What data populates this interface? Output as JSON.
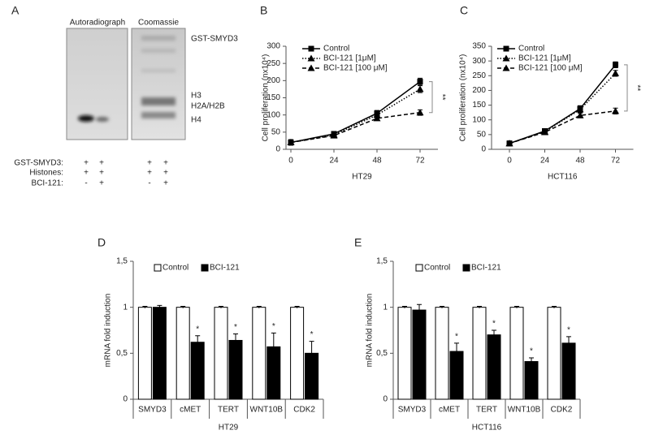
{
  "blot": {
    "panel": "A",
    "columns": [
      "Autoradiograph",
      "Coomassie"
    ],
    "bands": [
      "GST-SMYD3",
      "H3",
      "H2A/H2B",
      "H4"
    ],
    "rows": [
      {
        "label": "GST-SMYD3:",
        "lanes": [
          "+",
          "+",
          "+",
          "+"
        ]
      },
      {
        "label": "Histones:",
        "lanes": [
          "+",
          "+",
          "+",
          "+"
        ]
      },
      {
        "label": "BCI-121:",
        "lanes": [
          "-",
          "+",
          "-",
          "+"
        ]
      }
    ]
  },
  "chart_data": [
    {
      "type": "line",
      "panel": "B",
      "xlabel": "HT29",
      "ylabel": "Cell proliferation (nx10⁴)",
      "categories": [
        "0",
        "24",
        "48",
        "72"
      ],
      "ylim": [
        0,
        300
      ],
      "yticks": [
        0,
        50,
        100,
        150,
        200,
        250,
        300
      ],
      "annotation": "**",
      "series": [
        {
          "name": "Control",
          "color": "#000000",
          "marker": "square",
          "dash": "solid",
          "values": [
            20,
            45,
            105,
            197
          ],
          "errors": [
            8,
            6,
            8,
            10
          ]
        },
        {
          "name": "BCI-121 [1μM]",
          "color": "#000000",
          "marker": "triangle",
          "dash": "dotted",
          "values": [
            20,
            42,
            100,
            175
          ],
          "errors": [
            8,
            6,
            8,
            10
          ]
        },
        {
          "name": "BCI-121 [100 μM]",
          "color": "#000000",
          "marker": "triangle",
          "dash": "dashed",
          "values": [
            20,
            40,
            90,
            107
          ],
          "errors": [
            8,
            6,
            6,
            8
          ]
        }
      ]
    },
    {
      "type": "line",
      "panel": "C",
      "xlabel": "HCT116",
      "ylabel": "Cell proliferation (nx10⁴)",
      "categories": [
        "0",
        "24",
        "48",
        "72"
      ],
      "ylim": [
        0,
        350
      ],
      "yticks": [
        0,
        50,
        100,
        150,
        200,
        250,
        300,
        350
      ],
      "annotation": "**",
      "series": [
        {
          "name": "Control",
          "color": "#000000",
          "marker": "square",
          "dash": "solid",
          "values": [
            20,
            62,
            138,
            287
          ],
          "errors": [
            8,
            6,
            10,
            10
          ]
        },
        {
          "name": "BCI-121 [1μM]",
          "color": "#000000",
          "marker": "triangle",
          "dash": "dotted",
          "values": [
            20,
            60,
            135,
            258
          ],
          "errors": [
            8,
            6,
            10,
            10
          ]
        },
        {
          "name": "BCI-121 [100 μM]",
          "color": "#000000",
          "marker": "triangle",
          "dash": "dashed",
          "values": [
            20,
            58,
            115,
            130
          ],
          "errors": [
            8,
            6,
            8,
            10
          ]
        }
      ]
    },
    {
      "type": "bar",
      "panel": "D",
      "xlabel": "HT29",
      "ylabel": "mRNA fold induction",
      "categories": [
        "SMYD3",
        "cMET",
        "TERT",
        "WNT10B",
        "CDK2"
      ],
      "ylim": [
        0,
        1.5
      ],
      "yticks": [
        0,
        {
          "value": 0.5,
          "label": "0,5"
        },
        1,
        {
          "value": 1.5,
          "label": "1,5"
        }
      ],
      "markers": [
        null,
        "*",
        "*",
        "*",
        "*"
      ],
      "series": [
        {
          "name": "Control",
          "color": "#ffffff",
          "values": [
            1,
            1,
            1,
            1,
            1
          ],
          "errors": [
            0.01,
            0.01,
            0.01,
            0.01,
            0.01
          ]
        },
        {
          "name": "BCI-121",
          "color": "#000000",
          "values": [
            1.0,
            0.62,
            0.64,
            0.57,
            0.5
          ],
          "errors": [
            0.02,
            0.07,
            0.07,
            0.15,
            0.13
          ]
        }
      ]
    },
    {
      "type": "bar",
      "panel": "E",
      "xlabel": "HCT116",
      "ylabel": "mRNA fold induction",
      "categories": [
        "SMYD3",
        "cMET",
        "TERT",
        "WNT10B",
        "CDK2"
      ],
      "ylim": [
        0,
        1.5
      ],
      "yticks": [
        0,
        {
          "value": 0.5,
          "label": "0,5"
        },
        1,
        {
          "value": 1.5,
          "label": "1,5"
        }
      ],
      "markers": [
        null,
        "*",
        "*",
        "*",
        "*"
      ],
      "series": [
        {
          "name": "Control",
          "color": "#ffffff",
          "values": [
            1,
            1,
            1,
            1,
            1
          ],
          "errors": [
            0.01,
            0.01,
            0.01,
            0.01,
            0.01
          ]
        },
        {
          "name": "BCI-121",
          "color": "#000000",
          "values": [
            0.97,
            0.52,
            0.7,
            0.41,
            0.61
          ],
          "errors": [
            0.06,
            0.09,
            0.05,
            0.04,
            0.07
          ]
        }
      ]
    }
  ]
}
